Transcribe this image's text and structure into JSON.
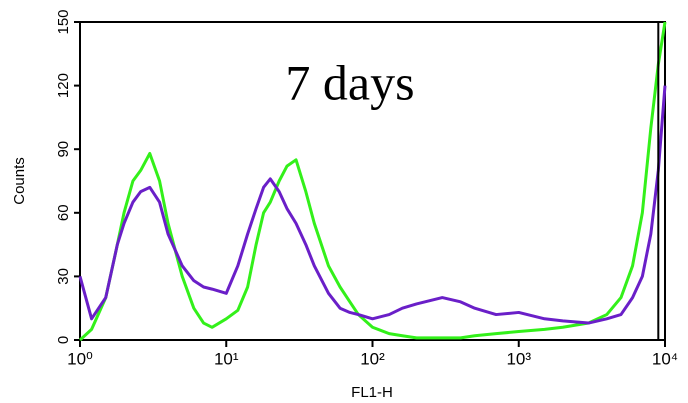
{
  "chart_data": {
    "type": "line",
    "annotation": "7 days",
    "xlabel": "FL1-H",
    "ylabel": "Counts",
    "xscale": "log",
    "xlim": [
      1,
      10000
    ],
    "xticks": [
      {
        "value": 1,
        "label": "10⁰"
      },
      {
        "value": 10,
        "label": "10¹"
      },
      {
        "value": 100,
        "label": "10²"
      },
      {
        "value": 1000,
        "label": "10³"
      },
      {
        "value": 10000,
        "label": "10⁴"
      }
    ],
    "ylim": [
      0,
      150
    ],
    "yticks": [
      0,
      30,
      60,
      90,
      120,
      150
    ],
    "marker_x": 9000,
    "x": [
      1,
      1.2,
      1.5,
      1.8,
      2,
      2.3,
      2.6,
      3,
      3.5,
      4,
      5,
      6,
      7,
      8,
      10,
      12,
      14,
      16,
      18,
      20,
      23,
      26,
      30,
      35,
      40,
      50,
      60,
      70,
      80,
      100,
      130,
      160,
      200,
      300,
      400,
      500,
      700,
      1000,
      1500,
      2000,
      3000,
      4000,
      5000,
      6000,
      7000,
      8000,
      9000,
      10000
    ],
    "series": [
      {
        "color": "#33f01a",
        "values": [
          0,
          5,
          20,
          45,
          60,
          75,
          80,
          88,
          75,
          55,
          30,
          15,
          8,
          6,
          10,
          14,
          25,
          45,
          60,
          65,
          75,
          82,
          85,
          70,
          55,
          35,
          25,
          18,
          12,
          6,
          3,
          2,
          1,
          1,
          1,
          2,
          3,
          4,
          5,
          6,
          8,
          12,
          20,
          35,
          60,
          100,
          130,
          150
        ]
      },
      {
        "color": "#6a1fc8",
        "values": [
          30,
          10,
          20,
          45,
          55,
          65,
          70,
          72,
          65,
          50,
          35,
          28,
          25,
          24,
          22,
          35,
          50,
          62,
          72,
          76,
          70,
          62,
          55,
          45,
          35,
          22,
          15,
          13,
          12,
          10,
          12,
          15,
          17,
          20,
          18,
          15,
          12,
          13,
          10,
          9,
          8,
          10,
          12,
          20,
          30,
          50,
          80,
          120
        ]
      }
    ]
  }
}
